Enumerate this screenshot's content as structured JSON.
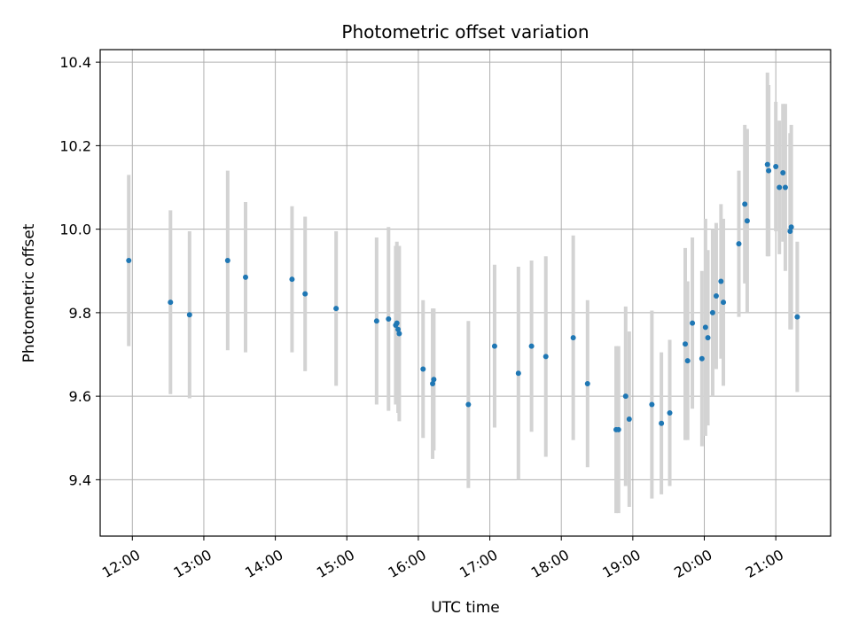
{
  "chart_data": {
    "type": "scatter",
    "title": "Photometric offset variation",
    "xlabel": "UTC time",
    "ylabel": "Photometric offset",
    "xlim": [
      "11:33",
      "21:46"
    ],
    "ylim": [
      9.265,
      10.43
    ],
    "grid": true,
    "x_ticks": [
      "12:00",
      "13:00",
      "14:00",
      "15:00",
      "16:00",
      "17:00",
      "18:00",
      "19:00",
      "20:00",
      "21:00"
    ],
    "y_ticks": [
      "9.4",
      "9.6",
      "9.8",
      "10.0",
      "10.2",
      "10.4"
    ],
    "y_tick_values": [
      9.4,
      9.6,
      9.8,
      10.0,
      10.2,
      10.4
    ],
    "colors": {
      "point": "#1f77b4",
      "errorbar": "#d3d3d3",
      "grid": "#b0b0b0"
    },
    "series": [
      {
        "x": [
          "11:57",
          "12:32",
          "12:48",
          "13:20",
          "13:35",
          "14:14",
          "14:25",
          "14:51",
          "15:25",
          "15:35",
          "15:41",
          "15:42",
          "15:43",
          "15:44",
          "16:04",
          "16:12",
          "16:13",
          "16:42",
          "17:04",
          "17:24",
          "17:35",
          "17:47",
          "18:10",
          "18:22",
          "18:46",
          "18:48",
          "18:54",
          "18:57",
          "19:16",
          "19:24",
          "19:31",
          "19:44",
          "19:46",
          "19:50",
          "19:58",
          "20:01",
          "20:03",
          "20:07",
          "20:10",
          "20:14",
          "20:16",
          "20:29",
          "20:34",
          "20:36",
          "20:53",
          "20:54",
          "21:00",
          "21:03",
          "21:06",
          "21:08",
          "21:12",
          "21:13",
          "21:18"
        ],
        "y": [
          9.925,
          9.825,
          9.795,
          9.925,
          9.885,
          9.88,
          9.845,
          9.81,
          9.78,
          9.785,
          9.77,
          9.775,
          9.76,
          9.75,
          9.665,
          9.63,
          9.64,
          9.58,
          9.72,
          9.655,
          9.72,
          9.695,
          9.74,
          9.63,
          9.52,
          9.52,
          9.6,
          9.545,
          9.58,
          9.535,
          9.56,
          9.725,
          9.685,
          9.775,
          9.69,
          9.765,
          9.74,
          9.8,
          9.84,
          9.875,
          9.825,
          9.965,
          10.06,
          10.02,
          10.155,
          10.14,
          10.15,
          10.1,
          10.135,
          10.1,
          9.995,
          10.005,
          9.79
        ],
        "yerr": [
          0.205,
          0.22,
          0.2,
          0.215,
          0.18,
          0.175,
          0.185,
          0.185,
          0.2,
          0.22,
          0.19,
          0.195,
          0.2,
          0.21,
          0.165,
          0.18,
          0.17,
          0.2,
          0.195,
          0.255,
          0.205,
          0.24,
          0.245,
          0.2,
          0.2,
          0.2,
          0.215,
          0.21,
          0.225,
          0.17,
          0.175,
          0.23,
          0.19,
          0.205,
          0.21,
          0.26,
          0.21,
          0.2,
          0.175,
          0.185,
          0.2,
          0.175,
          0.19,
          0.22,
          0.22,
          0.205,
          0.155,
          0.16,
          0.165,
          0.2,
          0.235,
          0.245,
          0.18
        ]
      }
    ]
  }
}
